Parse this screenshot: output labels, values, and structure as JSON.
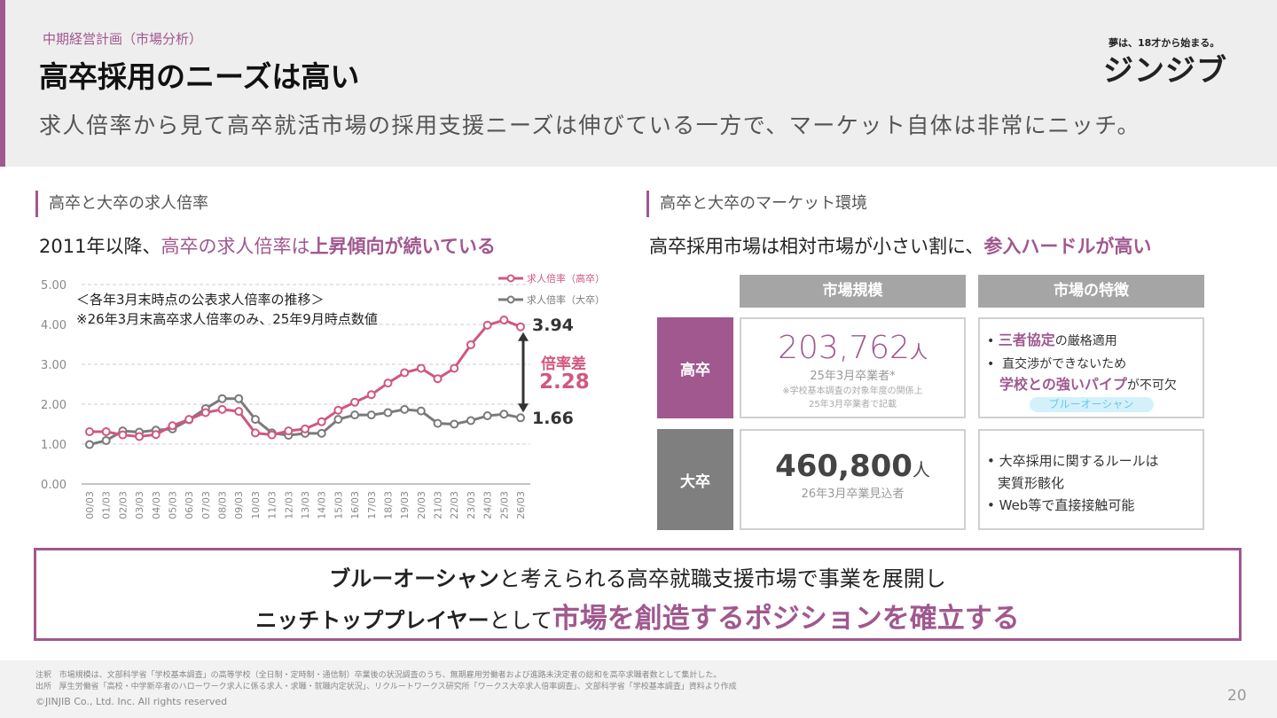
{
  "header": {
    "kicker": "中期経営計画（市場分析）",
    "title": "高卒採用のニーズは高い",
    "description": "求人倍率から見て高卒就活市場の採用支援ニーズは伸びている一方で、マーケット自体は非常にニッチ。",
    "tagline": "夢は、18才から始まる。",
    "logo": "ジンジブ"
  },
  "left": {
    "section": "高卒と大卒の求人倍率",
    "lead_prefix": "2011年以降、",
    "lead_mid": "高卒の求人倍率は",
    "lead_bold": "上昇傾向が続いている",
    "note1": "＜各年3月末時点の公表求人倍率の推移＞",
    "note2": "※26年3月末高卒求人倍率のみ、25年9月時点数値",
    "high_value": "3.94",
    "low_value": "1.66",
    "diff_label": "倍率差",
    "diff_value": "2.28"
  },
  "chart_data": {
    "type": "line",
    "categories": [
      "00/03",
      "01/03",
      "02/03",
      "03/03",
      "04/03",
      "05/03",
      "06/03",
      "07/03",
      "08/03",
      "09/03",
      "10/03",
      "11/03",
      "12/03",
      "13/03",
      "14/03",
      "15/03",
      "16/03",
      "17/03",
      "18/03",
      "19/03",
      "20/03",
      "21/03",
      "22/03",
      "23/03",
      "24/03",
      "25/03",
      "26/03"
    ],
    "series": [
      {
        "name": "求人倍率（高卒）",
        "color": "#d0587e",
        "values": [
          1.31,
          1.31,
          1.23,
          1.19,
          1.24,
          1.46,
          1.62,
          1.79,
          1.87,
          1.82,
          1.28,
          1.23,
          1.33,
          1.38,
          1.56,
          1.85,
          2.05,
          2.24,
          2.53,
          2.79,
          2.9,
          2.64,
          2.9,
          3.49,
          3.98,
          4.11,
          3.94
        ]
      },
      {
        "name": "求人倍率（大卒）",
        "color": "#7a7a7a",
        "values": [
          0.99,
          1.09,
          1.33,
          1.3,
          1.35,
          1.38,
          1.61,
          1.89,
          2.14,
          2.14,
          1.62,
          1.28,
          1.22,
          1.27,
          1.27,
          1.62,
          1.73,
          1.73,
          1.79,
          1.87,
          1.83,
          1.52,
          1.5,
          1.59,
          1.71,
          1.75,
          1.66
        ]
      }
    ],
    "yticks": [
      "0.00",
      "1.00",
      "2.00",
      "3.00",
      "4.00",
      "5.00"
    ],
    "ylim": [
      0,
      5
    ],
    "grid": true,
    "legend": "top-right"
  },
  "right": {
    "section": "高卒と大卒のマーケット環境",
    "lead_prefix": "高卒採用市場は相対市場が小さい割に、",
    "lead_bold": "参入ハードルが高い",
    "col1": "市場規模",
    "col2": "市場の特徴",
    "rows": [
      {
        "label": "高卒",
        "number": "203,762",
        "unit": "人",
        "sub": "25年3月卒業者*",
        "note1": "※学校基本調査の対象年度の関係上",
        "note2": "25年3月卒業者で記載"
      },
      {
        "label": "大卒",
        "number": "460,800",
        "unit": "人",
        "sub": "26年3月卒業見込者"
      }
    ],
    "hs_f1_bold": "三者協定",
    "hs_f1": "の厳格適用",
    "hs_f2": "直交渉ができないため",
    "hs_f3_bold": "学校との強いパイプ",
    "hs_f3": "が不可欠",
    "badge": "ブルーオーシャン",
    "us_f1": "大卒採用に関するルールは",
    "us_f1b": "実質形骸化",
    "us_f2": "Web等で直接接触可能"
  },
  "bottom": {
    "l1_bold": "ブルーオーシャン",
    "l1": "と考えられる高卒就職支援市場で事業を展開し",
    "l2_bold": "ニッチトッププレイヤー",
    "l2": "として",
    "l2_accent": "市場を創造するポジションを確立する"
  },
  "footer": {
    "note_label": "注釈",
    "note": "市場規模は、文部科学省「学校基本調査」の高等学校（全日制・定時制・通信制）卒業後の状況調査のうち、無期雇用労働者および進路未決定者の総和を高卒求職者数として集計した。",
    "src_label": "出所",
    "src": "厚生労働省「高校・中学新卒者のハローワーク求人に係る求人・求職・就職内定状況」、リクルートワークス研究所「ワークス大卒求人倍率調査」、文部科学省「学校基本調査」資料より作成",
    "copyright": "©JINJIB Co., Ltd. Inc. All rights reserved",
    "page": "20"
  }
}
